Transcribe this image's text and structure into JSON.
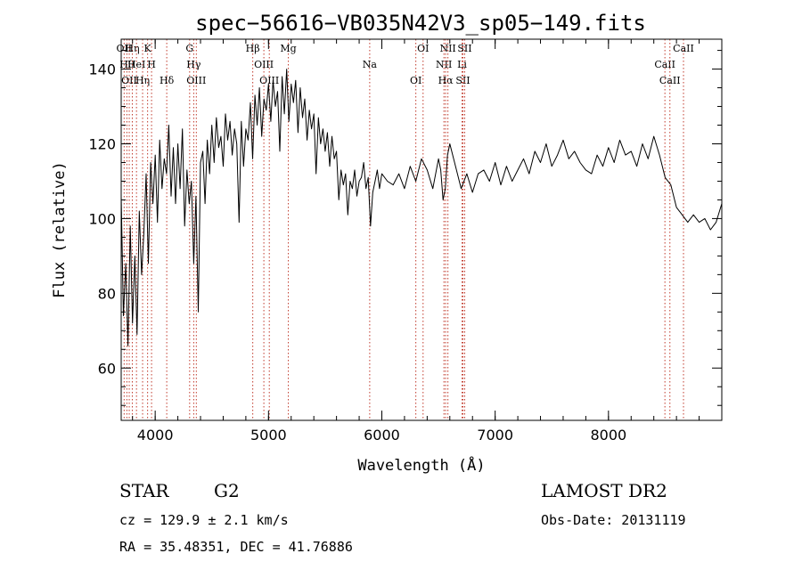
{
  "chart_data": {
    "type": "line",
    "title": "spec−56616−VB035N42V3_sp05−149.fits",
    "xlabel": "Wavelength (Å)",
    "ylabel": "Flux (relative)",
    "xlim": [
      3700,
      9000
    ],
    "ylim": [
      46,
      148
    ],
    "xticks": [
      4000,
      5000,
      6000,
      7000,
      8000
    ],
    "yticks": [
      60,
      80,
      100,
      120,
      140
    ],
    "grid": false,
    "series": [
      {
        "color": "#000000",
        "x": [
          3700,
          3720,
          3740,
          3760,
          3780,
          3800,
          3820,
          3840,
          3860,
          3880,
          3900,
          3920,
          3940,
          3960,
          3980,
          4000,
          4020,
          4040,
          4060,
          4080,
          4100,
          4120,
          4140,
          4160,
          4180,
          4200,
          4220,
          4240,
          4260,
          4280,
          4300,
          4320,
          4340,
          4360,
          4380,
          4400,
          4420,
          4440,
          4460,
          4480,
          4500,
          4520,
          4540,
          4560,
          4580,
          4600,
          4620,
          4640,
          4660,
          4680,
          4700,
          4720,
          4740,
          4760,
          4780,
          4800,
          4820,
          4840,
          4860,
          4880,
          4900,
          4920,
          4940,
          4960,
          4980,
          5000,
          5020,
          5040,
          5060,
          5080,
          5100,
          5120,
          5140,
          5160,
          5180,
          5200,
          5220,
          5240,
          5260,
          5280,
          5300,
          5320,
          5340,
          5360,
          5380,
          5400,
          5420,
          5440,
          5460,
          5480,
          5500,
          5520,
          5540,
          5560,
          5580,
          5600,
          5620,
          5640,
          5660,
          5680,
          5700,
          5720,
          5740,
          5760,
          5780,
          5800,
          5820,
          5840,
          5860,
          5880,
          5900,
          5920,
          5940,
          5960,
          5980,
          6000,
          6050,
          6100,
          6150,
          6200,
          6250,
          6300,
          6350,
          6400,
          6450,
          6500,
          6520,
          6540,
          6560,
          6580,
          6600,
          6650,
          6700,
          6750,
          6800,
          6850,
          6900,
          6950,
          7000,
          7050,
          7100,
          7150,
          7200,
          7250,
          7300,
          7350,
          7400,
          7450,
          7500,
          7550,
          7600,
          7650,
          7700,
          7750,
          7800,
          7850,
          7900,
          7950,
          8000,
          8050,
          8100,
          8150,
          8200,
          8250,
          8300,
          8350,
          8400,
          8450,
          8500,
          8550,
          8600,
          8650,
          8700,
          8750,
          8800,
          8850,
          8900,
          8950,
          9000
        ],
        "y": [
          106,
          74,
          88,
          66,
          98,
          72,
          90,
          69,
          102,
          85,
          96,
          112,
          88,
          115,
          104,
          117,
          99,
          121,
          108,
          116,
          112,
          125,
          106,
          119,
          104,
          120,
          108,
          124,
          98,
          113,
          104,
          110,
          88,
          106,
          75,
          115,
          118,
          104,
          121,
          112,
          125,
          115,
          127,
          119,
          122,
          114,
          128,
          121,
          126,
          117,
          124,
          120,
          99,
          126,
          114,
          124,
          121,
          131,
          116,
          133,
          125,
          135,
          122,
          132,
          129,
          136,
          126,
          137,
          130,
          134,
          118,
          138,
          128,
          140,
          126,
          136,
          131,
          137,
          123,
          135,
          127,
          132,
          121,
          129,
          124,
          128,
          112,
          127,
          120,
          124,
          118,
          123,
          114,
          122,
          116,
          118,
          105,
          113,
          109,
          112,
          101,
          110,
          108,
          113,
          106,
          110,
          111,
          115,
          108,
          111,
          98,
          107,
          110,
          113,
          108,
          112,
          110,
          109,
          112,
          108,
          114,
          110,
          116,
          113,
          108,
          116,
          113,
          105,
          108,
          117,
          120,
          114,
          108,
          112,
          107,
          112,
          113,
          110,
          115,
          109,
          114,
          110,
          113,
          116,
          112,
          118,
          115,
          120,
          114,
          117,
          121,
          116,
          118,
          115,
          113,
          112,
          117,
          114,
          119,
          115,
          121,
          117,
          118,
          114,
          120,
          116,
          122,
          117,
          111,
          109,
          103,
          101,
          99,
          101,
          99,
          100,
          97,
          99,
          104
        ]
      }
    ],
    "lines": [
      {
        "x": 3726,
        "label": "OII"
      },
      {
        "x": 3750,
        "label": "Hθ"
      },
      {
        "x": 3771,
        "label": "OII"
      },
      {
        "x": 3798,
        "label": "Hη"
      },
      {
        "x": 3835,
        "label": "HeI"
      },
      {
        "x": 3889,
        "label": "Hη"
      },
      {
        "x": 3933,
        "label": "K"
      },
      {
        "x": 3968,
        "label": "H"
      },
      {
        "x": 4102,
        "label": "Hδ"
      },
      {
        "x": 4304,
        "label": "G"
      },
      {
        "x": 4340,
        "label": "Hγ"
      },
      {
        "x": 4363,
        "label": "OIII"
      },
      {
        "x": 4861,
        "label": "Hβ"
      },
      {
        "x": 4959,
        "label": "OIII"
      },
      {
        "x": 5007,
        "label": "OIII"
      },
      {
        "x": 5175,
        "label": "Mg"
      },
      {
        "x": 5893,
        "label": "Na"
      },
      {
        "x": 6300,
        "label": "OI"
      },
      {
        "x": 6364,
        "label": "OI"
      },
      {
        "x": 6548,
        "label": "NII"
      },
      {
        "x": 6563,
        "label": "Hα"
      },
      {
        "x": 6583,
        "label": "NII"
      },
      {
        "x": 6708,
        "label": "Li"
      },
      {
        "x": 6716,
        "label": "SII"
      },
      {
        "x": 6731,
        "label": "SII"
      },
      {
        "x": 8498,
        "label": "CaII"
      },
      {
        "x": 8542,
        "label": "CaII"
      },
      {
        "x": 8662,
        "label": "CaII"
      }
    ]
  },
  "info": {
    "class": "STAR",
    "subclass": "G2",
    "survey": "LAMOST DR2",
    "cz": "cz = 129.9 ± 2.1 km/s",
    "obsdate": "Obs-Date: 20131119",
    "radec": "RA =  35.48351, DEC =  41.76886"
  },
  "colors": {
    "line_marker": "#c0392b",
    "spectrum": "#000000"
  }
}
